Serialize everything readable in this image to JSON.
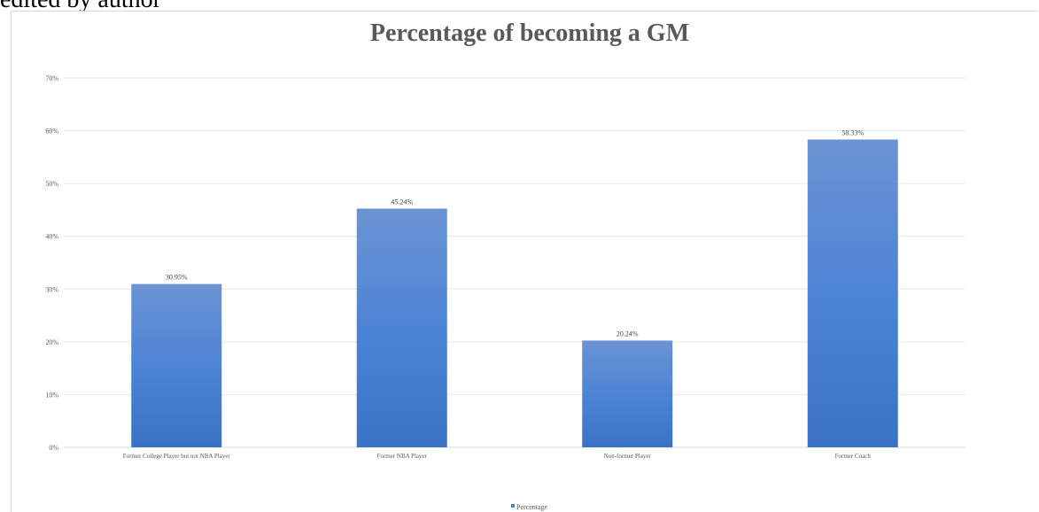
{
  "caption": "edited by author",
  "chart_data": {
    "type": "bar",
    "title": "Percentage of becoming a GM",
    "categories": [
      "Former College Player but not NBA Player",
      "Former NBA Player",
      "Non-former Player",
      "Former Coach"
    ],
    "series": [
      {
        "name": "Percentage",
        "values": [
          30.95,
          45.24,
          20.24,
          58.33
        ]
      }
    ],
    "data_labels": [
      "30.95%",
      "45.24%",
      "20.24%",
      "58.33%"
    ],
    "y_ticks": [
      "0%",
      "10%",
      "20%",
      "30%",
      "40%",
      "50%",
      "60%",
      "70%"
    ],
    "ylim": [
      0,
      70
    ],
    "xlabel": "",
    "ylabel": "",
    "grid": true,
    "legend_position": "bottom",
    "colors": {
      "bar": "#4a7fd1",
      "bar_light": "#6a93d4",
      "gridline": "#e6e6e6",
      "axis": "#d9d9d9"
    }
  }
}
